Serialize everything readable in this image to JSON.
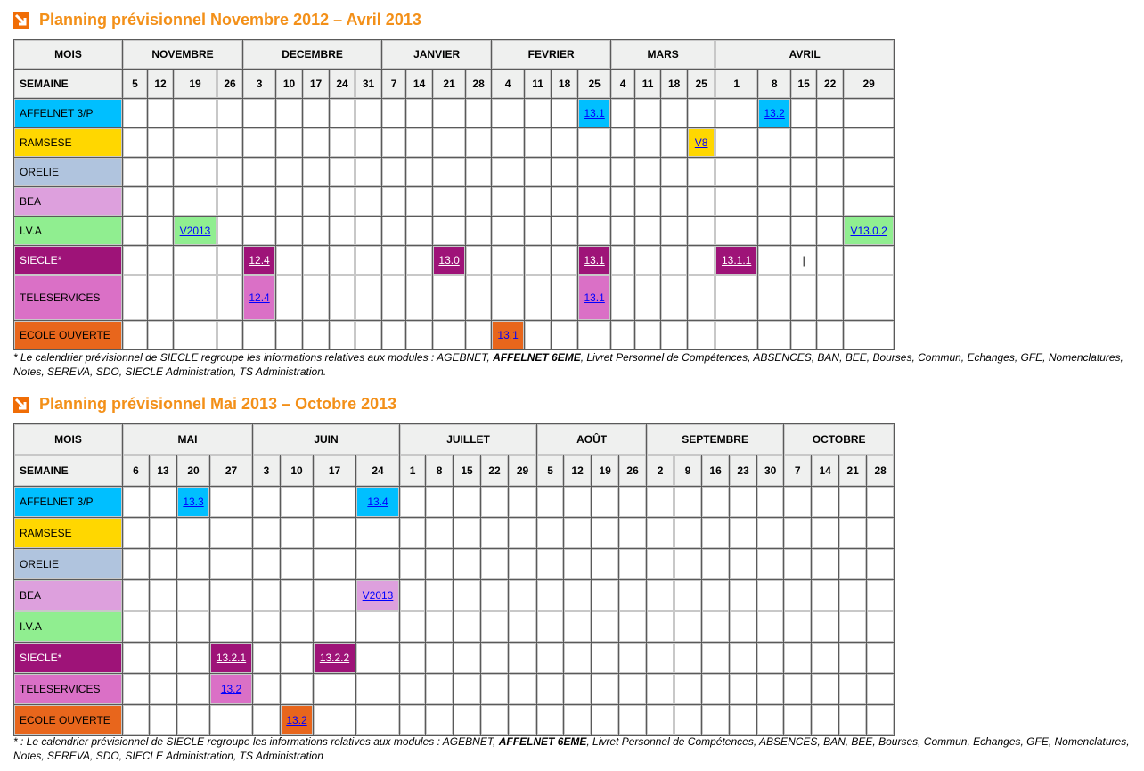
{
  "colors": {
    "accent": "#f39019",
    "icon": "#f06d06",
    "header_bg": "#eff0ef"
  },
  "sections": [
    {
      "title": "Planning prévisionnel Novembre 2012 – Avril 2013",
      "mois_label": "MOIS",
      "semaine_label": "SEMAINE",
      "months": [
        {
          "name": "NOVEMBRE",
          "weeks": [
            "5",
            "12",
            "19",
            "26"
          ]
        },
        {
          "name": "DECEMBRE",
          "weeks": [
            "3",
            "10",
            "17",
            "24",
            "31"
          ]
        },
        {
          "name": "JANVIER",
          "weeks": [
            "7",
            "14",
            "21",
            "28"
          ]
        },
        {
          "name": "FEVRIER",
          "weeks": [
            "4",
            "11",
            "18",
            "25"
          ]
        },
        {
          "name": "MARS",
          "weeks": [
            "4",
            "11",
            "18",
            "25"
          ]
        },
        {
          "name": "AVRIL",
          "weeks": [
            "1",
            "8",
            "15",
            "22",
            "29"
          ]
        }
      ],
      "rows": [
        {
          "label": "AFFELNET 3/P",
          "color": "#00bfff",
          "events": [
            {
              "month": "FEVRIER",
              "week": "25",
              "label": "13.1"
            },
            {
              "month": "AVRIL",
              "week": "8",
              "label": "13.2"
            }
          ]
        },
        {
          "label": "RAMSESE",
          "color": "#ffd700",
          "events": [
            {
              "month": "MARS",
              "week": "25",
              "label": "V8"
            }
          ]
        },
        {
          "label": "ORELIE",
          "color": "#b0c4de",
          "events": []
        },
        {
          "label": "BEA",
          "color": "#dda0dd",
          "events": []
        },
        {
          "label": "I.V.A",
          "color": "#90ee90",
          "events": [
            {
              "month": "NOVEMBRE",
              "week": "19",
              "label": "V2013"
            },
            {
              "month": "AVRIL",
              "week": "29",
              "label": "V13.0.2"
            }
          ]
        },
        {
          "label": "SIECLE*",
          "color": "#9e1378",
          "light": true,
          "events": [
            {
              "month": "DECEMBRE",
              "week": "3",
              "label": "12.4"
            },
            {
              "month": "JANVIER",
              "week": "21",
              "label": "13.0"
            },
            {
              "month": "FEVRIER",
              "week": "25",
              "label": "13.1"
            },
            {
              "month": "AVRIL",
              "week": "1",
              "label": "13.1.1"
            },
            {
              "month": "AVRIL",
              "week": "15",
              "label": "|",
              "plain": true
            }
          ]
        },
        {
          "label": "TELESERVICES",
          "color": "#da70c6",
          "tall": true,
          "events": [
            {
              "month": "DECEMBRE",
              "week": "3",
              "label": "12.4"
            },
            {
              "month": "FEVRIER",
              "week": "25",
              "label": "13.1"
            }
          ]
        },
        {
          "label": "ECOLE OUVERTE",
          "color": "#e8661c",
          "events": [
            {
              "month": "FEVRIER",
              "week": "4",
              "label": "13.1"
            }
          ]
        }
      ],
      "note_pre": "*  Le calendrier prévisionnel de SIECLE regroupe les informations relatives aux modules : AGEBNET, ",
      "note_bold": "AFFELNET 6EME",
      "note_post": ", Livret Personnel de Compétences, ABSENCES, BAN, BEE, Bourses, Commun, Echanges, GFE, Nomenclatures, Notes, SEREVA, SDO, SIECLE Administration, TS Administration."
    },
    {
      "title": "Planning prévisionnel Mai 2013 – Octobre 2013",
      "mois_label": "MOIS",
      "semaine_label": "SEMAINE",
      "months": [
        {
          "name": "MAI",
          "weeks": [
            "6",
            "13",
            "20",
            "27"
          ]
        },
        {
          "name": "JUIN",
          "weeks": [
            "3",
            "10",
            "17",
            "24"
          ]
        },
        {
          "name": "JUILLET",
          "weeks": [
            "1",
            "8",
            "15",
            "22",
            "29"
          ]
        },
        {
          "name": "AOÛT",
          "weeks": [
            "5",
            "12",
            "19",
            "26"
          ]
        },
        {
          "name": "SEPTEMBRE",
          "weeks": [
            "2",
            "9",
            "16",
            "23",
            "30"
          ]
        },
        {
          "name": "OCTOBRE",
          "weeks": [
            "7",
            "14",
            "21",
            "28"
          ]
        }
      ],
      "rows": [
        {
          "label": "AFFELNET 3/P",
          "color": "#00bfff",
          "events": [
            {
              "month": "MAI",
              "week": "20",
              "label": "13.3"
            },
            {
              "month": "JUIN",
              "week": "24",
              "label": "13.4"
            }
          ]
        },
        {
          "label": "RAMSESE",
          "color": "#ffd700",
          "events": []
        },
        {
          "label": "ORELIE",
          "color": "#b0c4de",
          "events": []
        },
        {
          "label": "BEA",
          "color": "#dda0dd",
          "events": [
            {
              "month": "JUIN",
              "week": "24",
              "label": "V2013"
            }
          ]
        },
        {
          "label": "I.V.A",
          "color": "#90ee90",
          "events": []
        },
        {
          "label": "SIECLE*",
          "color": "#9e1378",
          "light": true,
          "events": [
            {
              "month": "MAI",
              "week": "27",
              "label": "13.2.1"
            },
            {
              "month": "JUIN",
              "week": "17",
              "label": "13.2.2"
            }
          ]
        },
        {
          "label": "TELESERVICES",
          "color": "#da70c6",
          "events": [
            {
              "month": "MAI",
              "week": "27",
              "label": "13.2"
            }
          ]
        },
        {
          "label": "ECOLE OUVERTE",
          "color": "#e8661c",
          "events": [
            {
              "month": "JUIN",
              "week": "10",
              "label": "13.2"
            }
          ]
        }
      ],
      "note_pre": "* : Le calendrier prévisionnel de SIECLE regroupe les informations relatives aux modules : AGEBNET, ",
      "note_bold": "AFFELNET 6EME",
      "note_post": ", Livret Personnel de Compétences, ABSENCES, BAN, BEE, Bourses, Commun, Echanges, GFE, Nomenclatures, Notes, SEREVA, SDO, SIECLE Administration, TS Administration"
    }
  ]
}
